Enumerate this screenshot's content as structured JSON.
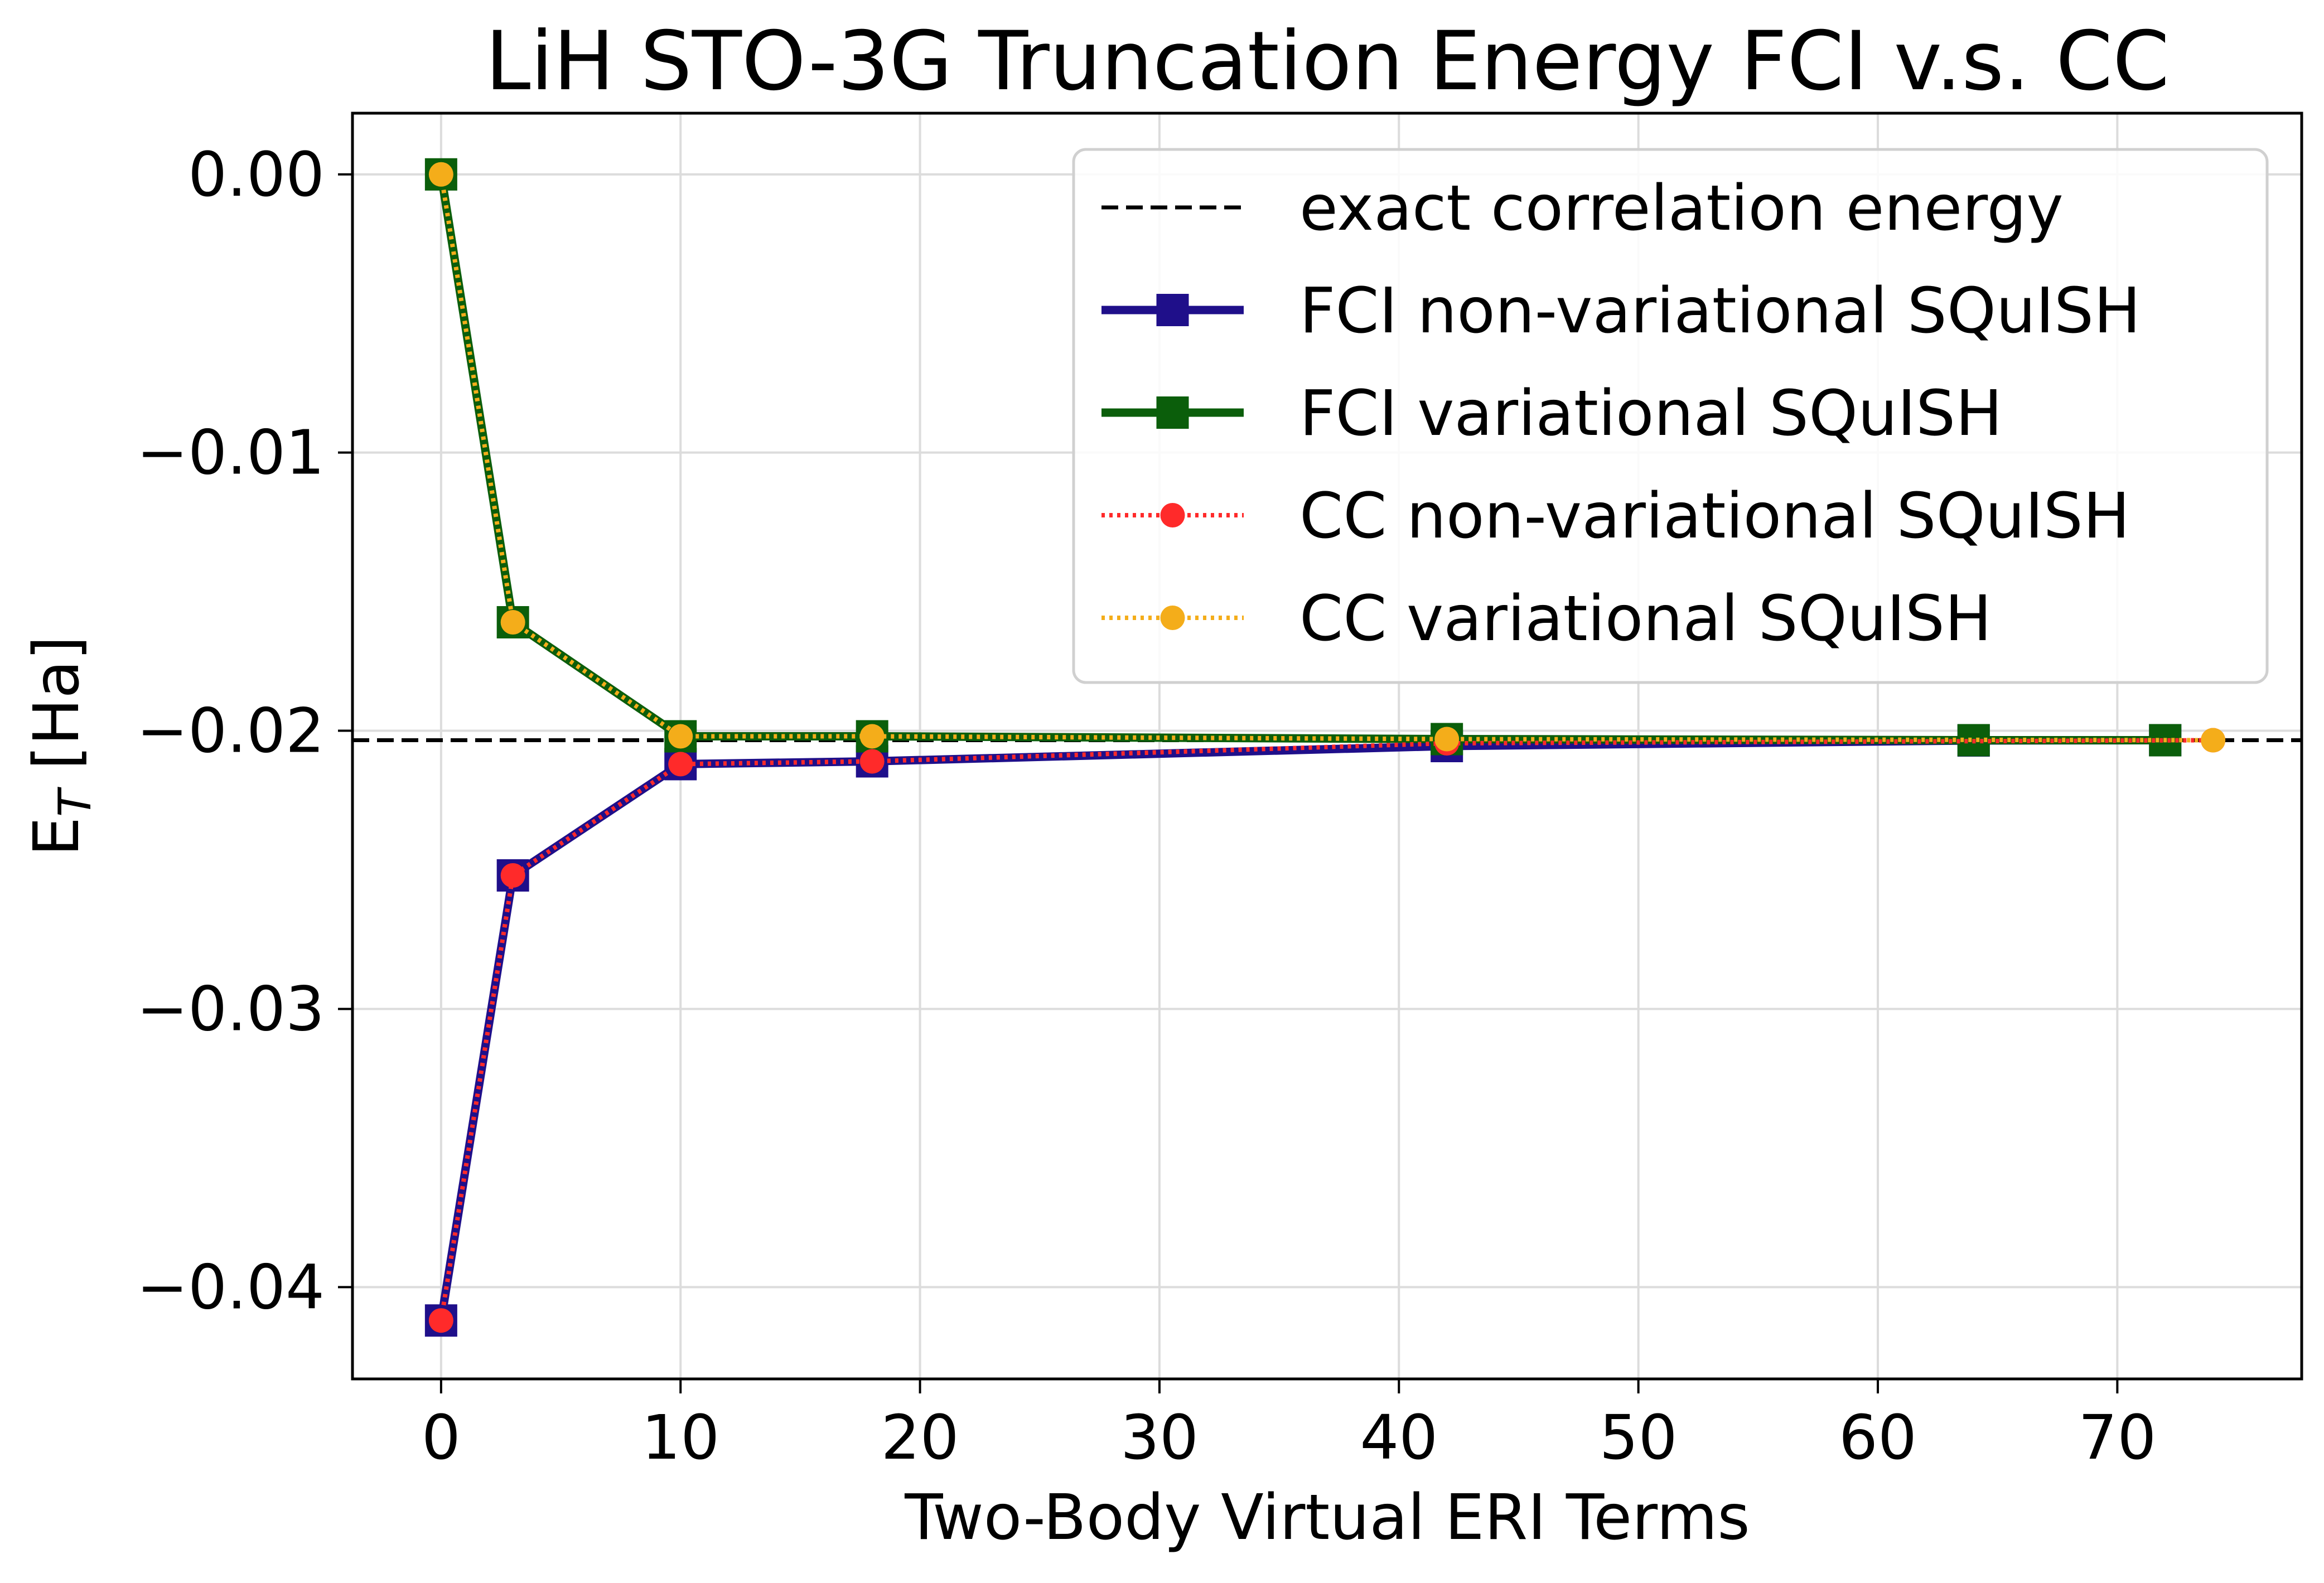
{
  "chart_data": {
    "type": "line",
    "title": "LiH STO-3G Truncation Energy FCI v.s. CC",
    "xlabel": "Two-Body Virtual ERI Terms",
    "ylabel_main": "E",
    "ylabel_sub": "T",
    "ylabel_unit": " [Ha]",
    "xlim": [
      -3.7,
      77.7
    ],
    "ylim": [
      -0.0433,
      0.0022
    ],
    "xticks": [
      0,
      10,
      20,
      30,
      40,
      50,
      60,
      70
    ],
    "xtick_labels": [
      "0",
      "10",
      "20",
      "30",
      "40",
      "50",
      "60",
      "70"
    ],
    "yticks": [
      0.0,
      -0.01,
      -0.02,
      -0.03,
      -0.04
    ],
    "ytick_labels": [
      "0.00",
      "−0.01",
      "−0.02",
      "−0.03",
      "−0.04"
    ],
    "grid": true,
    "legend_position": "top-right",
    "reference_line": {
      "name": "exact correlation energy",
      "value": -0.02034,
      "color": "#000000",
      "style": "dashed"
    },
    "series": [
      {
        "name": "FCI non-variational SQuISH",
        "color": "#1f0f8a",
        "marker": "square",
        "style": "solid",
        "x": [
          0,
          3,
          10,
          18,
          42,
          64,
          72
        ],
        "y": [
          -0.0412,
          -0.0252,
          -0.0212,
          -0.0211,
          -0.02055,
          -0.02035,
          -0.02034
        ]
      },
      {
        "name": "FCI variational SQuISH",
        "color": "#0b5e0b",
        "marker": "square",
        "style": "solid",
        "x": [
          0,
          3,
          10,
          18,
          42,
          64,
          72
        ],
        "y": [
          0.0,
          -0.0161,
          -0.0202,
          -0.0202,
          -0.0203,
          -0.02034,
          -0.02034
        ]
      },
      {
        "name": "CC non-variational SQuISH",
        "color": "#ff2a2a",
        "marker": "circle",
        "style": "dotted",
        "x": [
          0,
          3,
          10,
          18,
          42,
          74
        ],
        "y": [
          -0.0412,
          -0.0252,
          -0.0212,
          -0.0211,
          -0.02045,
          -0.02034
        ]
      },
      {
        "name": "CC variational SQuISH",
        "color": "#f4ad1a",
        "marker": "circle",
        "style": "dotted",
        "x": [
          0,
          3,
          10,
          18,
          42,
          74
        ],
        "y": [
          0.0,
          -0.0161,
          -0.0202,
          -0.0202,
          -0.0203,
          -0.02034
        ]
      }
    ]
  }
}
